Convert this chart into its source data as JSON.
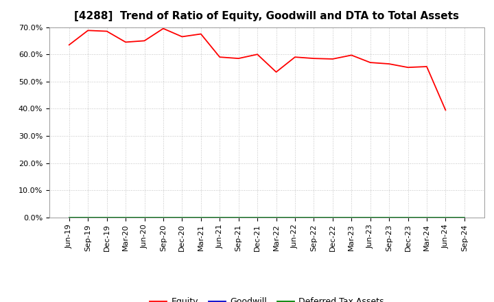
{
  "title": "[4288]  Trend of Ratio of Equity, Goodwill and DTA to Total Assets",
  "x_labels": [
    "Jun-19",
    "Sep-19",
    "Dec-19",
    "Mar-20",
    "Jun-20",
    "Sep-20",
    "Dec-20",
    "Mar-21",
    "Jun-21",
    "Sep-21",
    "Dec-21",
    "Mar-22",
    "Jun-22",
    "Sep-22",
    "Dec-22",
    "Mar-23",
    "Jun-23",
    "Sep-23",
    "Dec-23",
    "Mar-24",
    "Jun-24",
    "Sep-24"
  ],
  "equity": [
    63.5,
    68.8,
    68.5,
    64.5,
    65.0,
    69.5,
    66.5,
    67.5,
    59.0,
    58.5,
    60.0,
    53.5,
    59.0,
    58.5,
    58.3,
    59.7,
    57.0,
    56.5,
    55.2,
    55.5,
    39.5,
    null
  ],
  "goodwill": [
    0,
    0,
    0,
    0,
    0,
    0,
    0,
    0,
    0,
    0,
    0,
    0,
    0,
    0,
    0,
    0,
    0,
    0,
    0,
    0,
    0,
    0
  ],
  "dta": [
    0,
    0,
    0,
    0,
    0,
    0,
    0,
    0,
    0,
    0,
    0,
    0,
    0,
    0,
    0,
    0,
    0,
    0,
    0,
    0,
    0,
    0
  ],
  "equity_color": "#ff0000",
  "goodwill_color": "#0000cc",
  "dta_color": "#008000",
  "ylim_min": 0,
  "ylim_max": 70,
  "yticks": [
    0,
    10,
    20,
    30,
    40,
    50,
    60,
    70
  ],
  "background_color": "#ffffff",
  "plot_bg_color": "#ffffff",
  "grid_color": "#bbbbbb",
  "title_fontsize": 11,
  "tick_fontsize": 8,
  "legend_labels": [
    "Equity",
    "Goodwill",
    "Deferred Tax Assets"
  ],
  "legend_fontsize": 9
}
